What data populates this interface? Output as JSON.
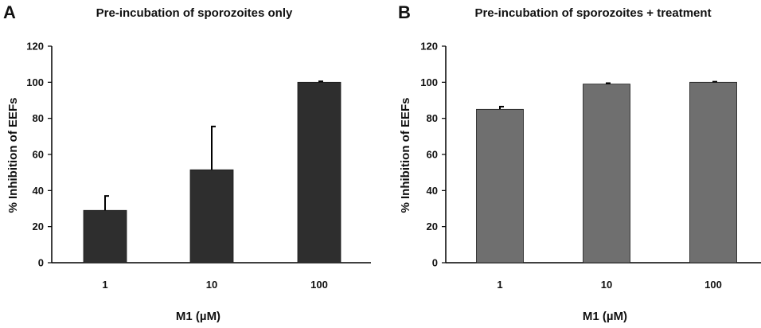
{
  "chart_data": [
    {
      "type": "bar",
      "panel": "A",
      "title": "Pre-incubation of sporozoites only",
      "xlabel": "M1 (µM)",
      "ylabel": "% Inhibition of EEFs",
      "categories": [
        "1",
        "10",
        "100"
      ],
      "values": [
        29,
        51.5,
        100
      ],
      "error_upper": [
        8,
        24,
        0.5
      ],
      "ylim": [
        0,
        120
      ],
      "yticks": [
        0,
        20,
        40,
        60,
        80,
        100,
        120
      ],
      "grid": false,
      "bar_color": "#2e2e2e"
    },
    {
      "type": "bar",
      "panel": "B",
      "title": "Pre-incubation of sporozoites + treatment",
      "xlabel": "M1 (µM)",
      "ylabel": "% Inhibition of EEFs",
      "categories": [
        "1",
        "10",
        "100"
      ],
      "values": [
        85,
        99,
        100
      ],
      "error_upper": [
        1.5,
        0.5,
        0.3
      ],
      "ylim": [
        0,
        120
      ],
      "yticks": [
        0,
        20,
        40,
        60,
        80,
        100,
        120
      ],
      "grid": false,
      "bar_color": "#6f6f6f"
    }
  ]
}
